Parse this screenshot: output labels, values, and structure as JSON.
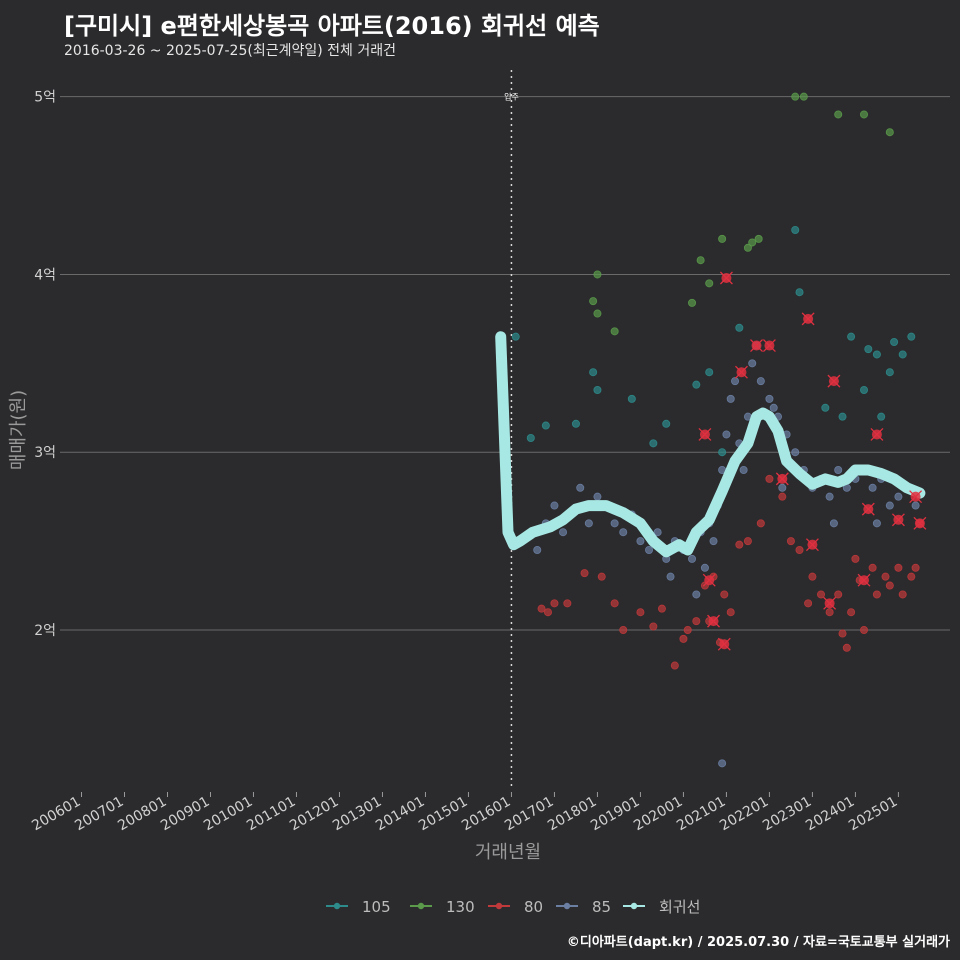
{
  "header": {
    "title": "[구미시] e편한세상봉곡 아파트(2016) 회귀선 예측",
    "subtitle": "2016-03-26 ~ 2025-07-25(최근계약일) 전체 거래건"
  },
  "caption": "©디아파트(dapt.kr) / 2025.07.30 / 자료=국토교통부 실거래가",
  "chart_data": {
    "type": "scatter",
    "title": "[구미시] e편한세상봉곡 아파트(2016) 회귀선 예측",
    "xlabel": "거래년월",
    "ylabel": "매매가(원)",
    "x_ticks": [
      "200601",
      "200701",
      "200801",
      "200901",
      "201001",
      "201101",
      "201201",
      "201301",
      "201401",
      "201501",
      "201601",
      "201701",
      "201801",
      "201901",
      "202001",
      "202101",
      "202201",
      "202301",
      "202401",
      "202501"
    ],
    "y_ticks": [
      {
        "value": 2,
        "label": "2억"
      },
      {
        "value": 3,
        "label": "3억"
      },
      {
        "value": 4,
        "label": "4억"
      },
      {
        "value": 5,
        "label": "5억"
      }
    ],
    "xlim": [
      2005.5,
      2026.2
    ],
    "ylim": [
      1.1,
      5.15
    ],
    "grid": true,
    "legend_position": "bottom",
    "annotation": {
      "x": 2016.0,
      "label": "입주"
    },
    "series": [
      {
        "name": "105",
        "color": "#2e8b8b",
        "points": [
          [
            2016.1,
            3.65
          ],
          [
            2016.45,
            3.08
          ],
          [
            2016.8,
            3.15
          ],
          [
            2017.5,
            3.16
          ],
          [
            2017.9,
            3.45
          ],
          [
            2018.0,
            3.35
          ],
          [
            2018.8,
            3.3
          ],
          [
            2019.3,
            3.05
          ],
          [
            2019.6,
            3.16
          ],
          [
            2020.3,
            3.38
          ],
          [
            2020.6,
            3.45
          ],
          [
            2020.9,
            3.0
          ],
          [
            2021.3,
            3.7
          ],
          [
            2022.6,
            4.25
          ],
          [
            2022.7,
            3.9
          ],
          [
            2023.3,
            3.25
          ],
          [
            2023.7,
            3.2
          ],
          [
            2023.9,
            3.65
          ],
          [
            2024.2,
            3.35
          ],
          [
            2024.3,
            3.58
          ],
          [
            2024.5,
            3.55
          ],
          [
            2024.6,
            3.2
          ],
          [
            2024.8,
            3.45
          ],
          [
            2024.9,
            3.62
          ],
          [
            2025.1,
            3.55
          ],
          [
            2025.3,
            3.65
          ]
        ]
      },
      {
        "name": "130",
        "color": "#5a9a4a",
        "points": [
          [
            2018.0,
            4.0
          ],
          [
            2017.9,
            3.85
          ],
          [
            2018.0,
            3.78
          ],
          [
            2018.4,
            3.68
          ],
          [
            2020.4,
            4.08
          ],
          [
            2020.6,
            3.95
          ],
          [
            2020.2,
            3.84
          ],
          [
            2020.9,
            4.2
          ],
          [
            2021.5,
            4.15
          ],
          [
            2021.6,
            4.18
          ],
          [
            2021.75,
            4.2
          ],
          [
            2022.6,
            5.0
          ],
          [
            2022.8,
            5.0
          ],
          [
            2023.6,
            4.9
          ],
          [
            2024.2,
            4.9
          ],
          [
            2024.8,
            4.8
          ]
        ]
      },
      {
        "name": "80",
        "color": "#c0393b",
        "points": [
          [
            2016.7,
            2.12
          ],
          [
            2016.85,
            2.1
          ],
          [
            2017.0,
            2.15
          ],
          [
            2017.3,
            2.15
          ],
          [
            2017.7,
            2.32
          ],
          [
            2018.1,
            2.3
          ],
          [
            2018.4,
            2.15
          ],
          [
            2018.6,
            2.0
          ],
          [
            2019.0,
            2.1
          ],
          [
            2019.3,
            2.02
          ],
          [
            2019.5,
            2.12
          ],
          [
            2019.8,
            1.8
          ],
          [
            2020.0,
            1.95
          ],
          [
            2020.1,
            2.0
          ],
          [
            2020.3,
            2.05
          ],
          [
            2020.5,
            2.25
          ],
          [
            2020.6,
            2.05
          ],
          [
            2020.7,
            2.3
          ],
          [
            2020.85,
            1.93
          ],
          [
            2020.95,
            2.2
          ],
          [
            2021.1,
            2.1
          ],
          [
            2021.3,
            2.48
          ],
          [
            2021.5,
            2.5
          ],
          [
            2021.8,
            2.6
          ],
          [
            2022.0,
            2.85
          ],
          [
            2022.3,
            2.75
          ],
          [
            2022.5,
            2.5
          ],
          [
            2022.7,
            2.45
          ],
          [
            2022.9,
            2.15
          ],
          [
            2023.0,
            2.3
          ],
          [
            2023.2,
            2.2
          ],
          [
            2023.4,
            2.1
          ],
          [
            2023.6,
            2.2
          ],
          [
            2023.7,
            1.98
          ],
          [
            2023.8,
            1.9
          ],
          [
            2023.9,
            2.1
          ],
          [
            2024.0,
            2.4
          ],
          [
            2024.1,
            2.28
          ],
          [
            2024.2,
            2.0
          ],
          [
            2024.4,
            2.35
          ],
          [
            2024.5,
            2.2
          ],
          [
            2024.7,
            2.3
          ],
          [
            2024.8,
            2.25
          ],
          [
            2025.0,
            2.35
          ],
          [
            2025.1,
            2.2
          ],
          [
            2025.3,
            2.3
          ],
          [
            2025.5,
            2.6
          ],
          [
            2025.4,
            2.35
          ]
        ]
      },
      {
        "name": "85",
        "color": "#6b7fa3",
        "points": [
          [
            2016.5,
            2.55
          ],
          [
            2016.6,
            2.45
          ],
          [
            2016.8,
            2.6
          ],
          [
            2017.0,
            2.7
          ],
          [
            2017.2,
            2.55
          ],
          [
            2017.4,
            2.65
          ],
          [
            2017.6,
            2.8
          ],
          [
            2017.8,
            2.6
          ],
          [
            2018.0,
            2.75
          ],
          [
            2018.2,
            2.7
          ],
          [
            2018.4,
            2.6
          ],
          [
            2018.6,
            2.55
          ],
          [
            2018.8,
            2.65
          ],
          [
            2019.0,
            2.5
          ],
          [
            2019.2,
            2.45
          ],
          [
            2019.4,
            2.55
          ],
          [
            2019.6,
            2.4
          ],
          [
            2019.8,
            2.5
          ],
          [
            2020.0,
            2.45
          ],
          [
            2020.2,
            2.4
          ],
          [
            2020.4,
            2.55
          ],
          [
            2020.5,
            2.35
          ],
          [
            2020.6,
            2.6
          ],
          [
            2020.7,
            2.5
          ],
          [
            2020.8,
            2.7
          ],
          [
            2020.9,
            2.9
          ],
          [
            2021.0,
            3.1
          ],
          [
            2021.1,
            3.3
          ],
          [
            2021.2,
            3.4
          ],
          [
            2021.3,
            3.05
          ],
          [
            2021.5,
            3.2
          ],
          [
            2021.6,
            3.5
          ],
          [
            2021.7,
            3.6
          ],
          [
            2021.8,
            3.4
          ],
          [
            2022.0,
            3.3
          ],
          [
            2022.1,
            3.25
          ],
          [
            2022.2,
            3.2
          ],
          [
            2022.4,
            3.1
          ],
          [
            2022.6,
            3.0
          ],
          [
            2022.8,
            2.9
          ],
          [
            2023.0,
            2.8
          ],
          [
            2023.2,
            2.85
          ],
          [
            2023.4,
            2.75
          ],
          [
            2023.6,
            2.9
          ],
          [
            2023.8,
            2.8
          ],
          [
            2024.0,
            2.85
          ],
          [
            2024.2,
            2.9
          ],
          [
            2024.4,
            2.8
          ],
          [
            2024.6,
            2.85
          ],
          [
            2024.8,
            2.7
          ],
          [
            2025.0,
            2.75
          ],
          [
            2025.2,
            2.8
          ],
          [
            2025.4,
            2.7
          ],
          [
            2020.9,
            1.25
          ],
          [
            2019.7,
            2.3
          ],
          [
            2020.3,
            2.2
          ],
          [
            2021.4,
            2.9
          ],
          [
            2022.3,
            2.8
          ],
          [
            2023.5,
            2.6
          ],
          [
            2024.5,
            2.6
          ]
        ]
      },
      {
        "name": "회귀선",
        "color": "#a8e8e4",
        "points": [
          [
            2015.75,
            3.65
          ],
          [
            2015.92,
            2.55
          ],
          [
            2016.05,
            2.48
          ],
          [
            2016.2,
            2.5
          ],
          [
            2016.5,
            2.55
          ],
          [
            2016.9,
            2.58
          ],
          [
            2017.2,
            2.62
          ],
          [
            2017.5,
            2.68
          ],
          [
            2017.8,
            2.7
          ],
          [
            2018.2,
            2.7
          ],
          [
            2018.6,
            2.66
          ],
          [
            2019.0,
            2.6
          ],
          [
            2019.3,
            2.5
          ],
          [
            2019.6,
            2.44
          ],
          [
            2019.9,
            2.48
          ],
          [
            2020.1,
            2.45
          ],
          [
            2020.3,
            2.55
          ],
          [
            2020.6,
            2.62
          ],
          [
            2020.9,
            2.78
          ],
          [
            2021.2,
            2.95
          ],
          [
            2021.5,
            3.05
          ],
          [
            2021.7,
            3.2
          ],
          [
            2021.85,
            3.22
          ],
          [
            2022.0,
            3.2
          ],
          [
            2022.2,
            3.12
          ],
          [
            2022.4,
            2.95
          ],
          [
            2022.7,
            2.88
          ],
          [
            2023.0,
            2.82
          ],
          [
            2023.3,
            2.85
          ],
          [
            2023.6,
            2.83
          ],
          [
            2023.8,
            2.85
          ],
          [
            2024.0,
            2.9
          ],
          [
            2024.3,
            2.9
          ],
          [
            2024.6,
            2.88
          ],
          [
            2024.9,
            2.85
          ],
          [
            2025.2,
            2.8
          ],
          [
            2025.5,
            2.77
          ]
        ]
      }
    ],
    "highlight_markers": [
      [
        2020.5,
        3.1
      ],
      [
        2020.6,
        2.28
      ],
      [
        2020.7,
        2.05
      ],
      [
        2020.95,
        1.92
      ],
      [
        2021.0,
        3.98
      ],
      [
        2021.35,
        3.45
      ],
      [
        2021.7,
        3.6
      ],
      [
        2022.0,
        3.6
      ],
      [
        2022.3,
        2.85
      ],
      [
        2022.9,
        3.75
      ],
      [
        2023.0,
        2.48
      ],
      [
        2023.4,
        2.15
      ],
      [
        2023.5,
        3.4
      ],
      [
        2024.2,
        2.28
      ],
      [
        2024.3,
        2.68
      ],
      [
        2024.5,
        3.1
      ],
      [
        2025.0,
        2.62
      ],
      [
        2025.5,
        2.6
      ],
      [
        2025.4,
        2.75
      ]
    ]
  }
}
